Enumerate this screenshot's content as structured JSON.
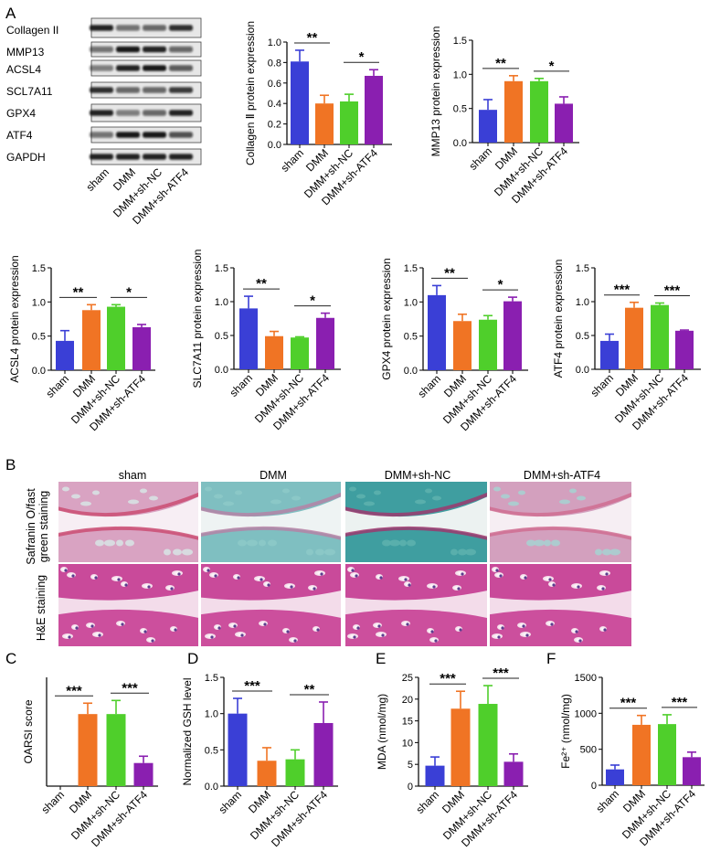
{
  "panel_labels": {
    "A": "A",
    "B": "B",
    "C": "C",
    "D": "D",
    "E": "E",
    "F": "F"
  },
  "colors": {
    "sham": "#3a3fd6",
    "DMM": "#f07424",
    "DMM+sh-NC": "#4fcf2b",
    "DMM+sh-ATF4": "#8a1fb0"
  },
  "western_blot": {
    "proteins": [
      "Collagen II",
      "MMP13",
      "ACSL4",
      "SCL7A11",
      "GPX4",
      "ATF4",
      "GAPDH"
    ],
    "lanes": [
      "sham",
      "DMM",
      "DMM+sh-NC",
      "DMM+sh-ATF4"
    ]
  },
  "histology": {
    "columns": [
      "sham",
      "DMM",
      "DMM+sh-NC",
      "DMM+sh-ATF4"
    ],
    "row_labels": [
      [
        "Safranin O/fast",
        "green staining"
      ],
      [
        "H&E staining"
      ]
    ]
  },
  "chart_data": [
    {
      "id": "collagen",
      "type": "bar",
      "ylabel": "Collagen Ⅱ protein expression",
      "categories": [
        "sham",
        "DMM",
        "DMM+sh-NC",
        "DMM+sh-ATF4"
      ],
      "values": [
        0.81,
        0.4,
        0.42,
        0.67
      ],
      "errors": [
        0.11,
        0.08,
        0.07,
        0.06
      ],
      "ylim": [
        0,
        1.0
      ],
      "yticks": [
        "0.0",
        "0.2",
        "0.4",
        "0.6",
        "0.8",
        "1.0"
      ],
      "significance": [
        {
          "from": 0,
          "to": 1,
          "label": "**"
        },
        {
          "from": 2,
          "to": 3,
          "label": "*"
        }
      ]
    },
    {
      "id": "mmp13",
      "type": "bar",
      "ylabel": "MMP13 protein expression",
      "categories": [
        "sham",
        "DMM",
        "DMM+sh-NC",
        "DMM+sh-ATF4"
      ],
      "values": [
        0.48,
        0.9,
        0.9,
        0.57
      ],
      "errors": [
        0.15,
        0.08,
        0.04,
        0.1
      ],
      "ylim": [
        0,
        1.5
      ],
      "yticks": [
        "0.0",
        "0.5",
        "1.0",
        "1.5"
      ],
      "significance": [
        {
          "from": 0,
          "to": 1,
          "label": "**"
        },
        {
          "from": 2,
          "to": 3,
          "label": "*"
        }
      ]
    },
    {
      "id": "acsl4",
      "type": "bar",
      "ylabel": "ACSL4 protein expression",
      "categories": [
        "sham",
        "DMM",
        "DMM+sh-NC",
        "DMM+sh-ATF4"
      ],
      "values": [
        0.43,
        0.88,
        0.93,
        0.63
      ],
      "errors": [
        0.15,
        0.08,
        0.03,
        0.04
      ],
      "ylim": [
        0,
        1.5
      ],
      "yticks": [
        "0.0",
        "0.5",
        "1.0",
        "1.5"
      ],
      "significance": [
        {
          "from": 0,
          "to": 1,
          "label": "**"
        },
        {
          "from": 2,
          "to": 3,
          "label": "*"
        }
      ]
    },
    {
      "id": "slc7a11",
      "type": "bar",
      "ylabel": "SLC7A11 protein expression",
      "categories": [
        "sham",
        "DMM",
        "DMM+sh-NC",
        "DMM+sh-ATF4"
      ],
      "values": [
        0.9,
        0.49,
        0.47,
        0.76
      ],
      "errors": [
        0.18,
        0.07,
        0.01,
        0.07
      ],
      "ylim": [
        0,
        1.5
      ],
      "yticks": [
        "0.0",
        "0.5",
        "1.0",
        "1.5"
      ],
      "significance": [
        {
          "from": 0,
          "to": 1,
          "label": "**"
        },
        {
          "from": 2,
          "to": 3,
          "label": "*"
        }
      ]
    },
    {
      "id": "gpx4",
      "type": "bar",
      "ylabel": "GPX4 protein expression",
      "categories": [
        "sham",
        "DMM",
        "DMM+sh-NC",
        "DMM+sh-ATF4"
      ],
      "values": [
        1.1,
        0.72,
        0.74,
        1.01
      ],
      "errors": [
        0.14,
        0.1,
        0.06,
        0.06
      ],
      "ylim": [
        0,
        1.5
      ],
      "yticks": [
        "0.0",
        "0.5",
        "1.0",
        "1.5"
      ],
      "significance": [
        {
          "from": 0,
          "to": 1,
          "label": "**"
        },
        {
          "from": 2,
          "to": 3,
          "label": "*"
        }
      ]
    },
    {
      "id": "atf4",
      "type": "bar",
      "ylabel": "ATF4 protein expression",
      "categories": [
        "sham",
        "DMM",
        "DMM+sh-NC",
        "DMM+sh-ATF4"
      ],
      "values": [
        0.42,
        0.91,
        0.95,
        0.57
      ],
      "errors": [
        0.1,
        0.08,
        0.03,
        0.01
      ],
      "ylim": [
        0,
        1.5
      ],
      "yticks": [
        "0.0",
        "0.5",
        "1.0",
        "1.5"
      ],
      "significance": [
        {
          "from": 0,
          "to": 1,
          "label": "***"
        },
        {
          "from": 2,
          "to": 3,
          "label": "***"
        }
      ]
    },
    {
      "id": "oarsi",
      "type": "bar",
      "ylabel": "OARSI score",
      "categories": [
        "sham",
        "DMM",
        "DMM+sh-NC",
        "DMM+sh-ATF4"
      ],
      "values": [
        0,
        5.3,
        5.3,
        1.7
      ],
      "errors": [
        0,
        0.8,
        1.0,
        0.5
      ],
      "ylim": [
        0,
        8
      ],
      "yticks": [],
      "significance": [
        {
          "from": 0,
          "to": 1,
          "label": "***"
        },
        {
          "from": 2,
          "to": 3,
          "label": "***"
        }
      ]
    },
    {
      "id": "gsh",
      "type": "bar",
      "ylabel": "Normalized GSH level",
      "categories": [
        "sham",
        "DMM",
        "DMM+sh-NC",
        "DMM+sh-ATF4"
      ],
      "values": [
        1.0,
        0.35,
        0.37,
        0.87
      ],
      "errors": [
        0.21,
        0.18,
        0.13,
        0.29
      ],
      "ylim": [
        0,
        1.5
      ],
      "yticks": [
        "0.0",
        "0.5",
        "1.0",
        "1.5"
      ],
      "significance": [
        {
          "from": 0,
          "to": 1,
          "label": "***"
        },
        {
          "from": 2,
          "to": 3,
          "label": "**"
        }
      ]
    },
    {
      "id": "mda",
      "type": "bar",
      "ylabel": "MDA (nmol/mg)",
      "categories": [
        "sham",
        "DMM",
        "DMM+sh-NC",
        "DMM+sh-ATF4"
      ],
      "values": [
        4.7,
        17.8,
        18.9,
        5.6
      ],
      "errors": [
        2.0,
        4.0,
        4.2,
        1.8
      ],
      "ylim": [
        0,
        25
      ],
      "yticks": [
        "0",
        "5",
        "10",
        "15",
        "20",
        "25"
      ],
      "significance": [
        {
          "from": 0,
          "to": 1,
          "label": "***"
        },
        {
          "from": 2,
          "to": 3,
          "label": "***"
        }
      ]
    },
    {
      "id": "fe",
      "type": "bar",
      "ylabel": "Fe²⁺ (nmol/mg)",
      "categories": [
        "sham",
        "DMM",
        "DMM+sh-NC",
        "DMM+sh-ATF4"
      ],
      "values": [
        220,
        840,
        850,
        390
      ],
      "errors": [
        60,
        130,
        130,
        70
      ],
      "ylim": [
        0,
        1500
      ],
      "yticks": [
        "0",
        "500",
        "1000",
        "1500"
      ],
      "significance": [
        {
          "from": 0,
          "to": 1,
          "label": "***"
        },
        {
          "from": 2,
          "to": 3,
          "label": "***"
        }
      ]
    }
  ]
}
